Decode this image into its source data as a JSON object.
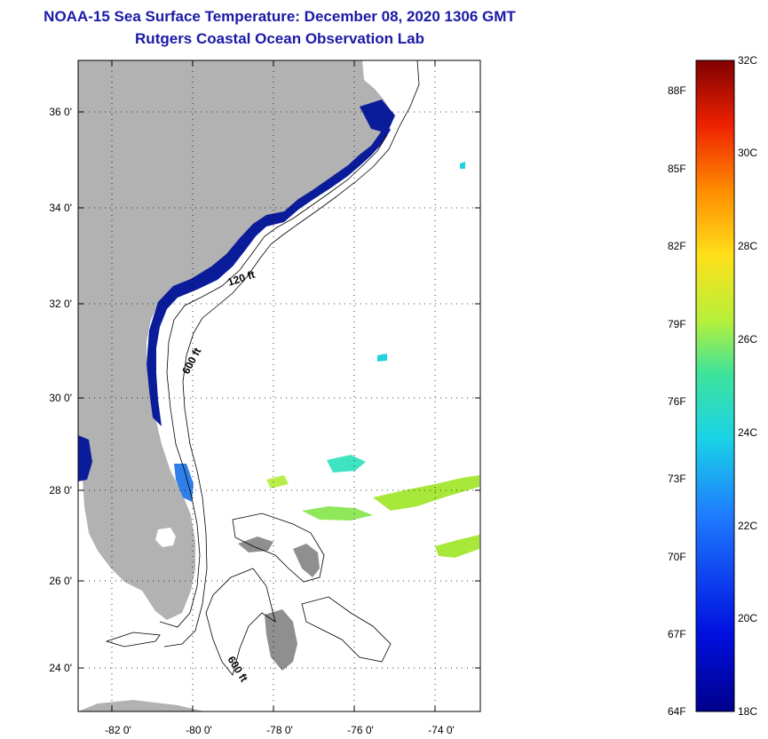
{
  "title": {
    "line1": "NOAA-15 Sea Surface Temperature:  December 08, 2020 1306 GMT",
    "line2": "Rutgers Coastal Ocean Observation Lab"
  },
  "map": {
    "lon_ticks": [
      "-82 0'",
      "-80 0'",
      "-78 0'",
      "-76 0'",
      "-74 0'"
    ],
    "lat_ticks": [
      "36 0'",
      "34 0'",
      "32 0'",
      "30 0'",
      "28 0'",
      "26 0'",
      "24 0'"
    ],
    "contour_labels": {
      "c120_north": "120 ft",
      "c600_north": "600 ft",
      "c600_south": "600 ft"
    },
    "colors": {
      "land": "#b2b2b2",
      "ocean": "#ffffff",
      "cold_sst": "#0a1c9a",
      "warm_sst": "#a8e83a"
    }
  },
  "colorbar": {
    "celsius": [
      "32C",
      "30C",
      "28C",
      "26C",
      "24C",
      "22C",
      "20C",
      "18C"
    ],
    "fahrenheit": [
      "88F",
      "85F",
      "82F",
      "79F",
      "76F",
      "73F",
      "70F",
      "67F",
      "64F"
    ]
  }
}
